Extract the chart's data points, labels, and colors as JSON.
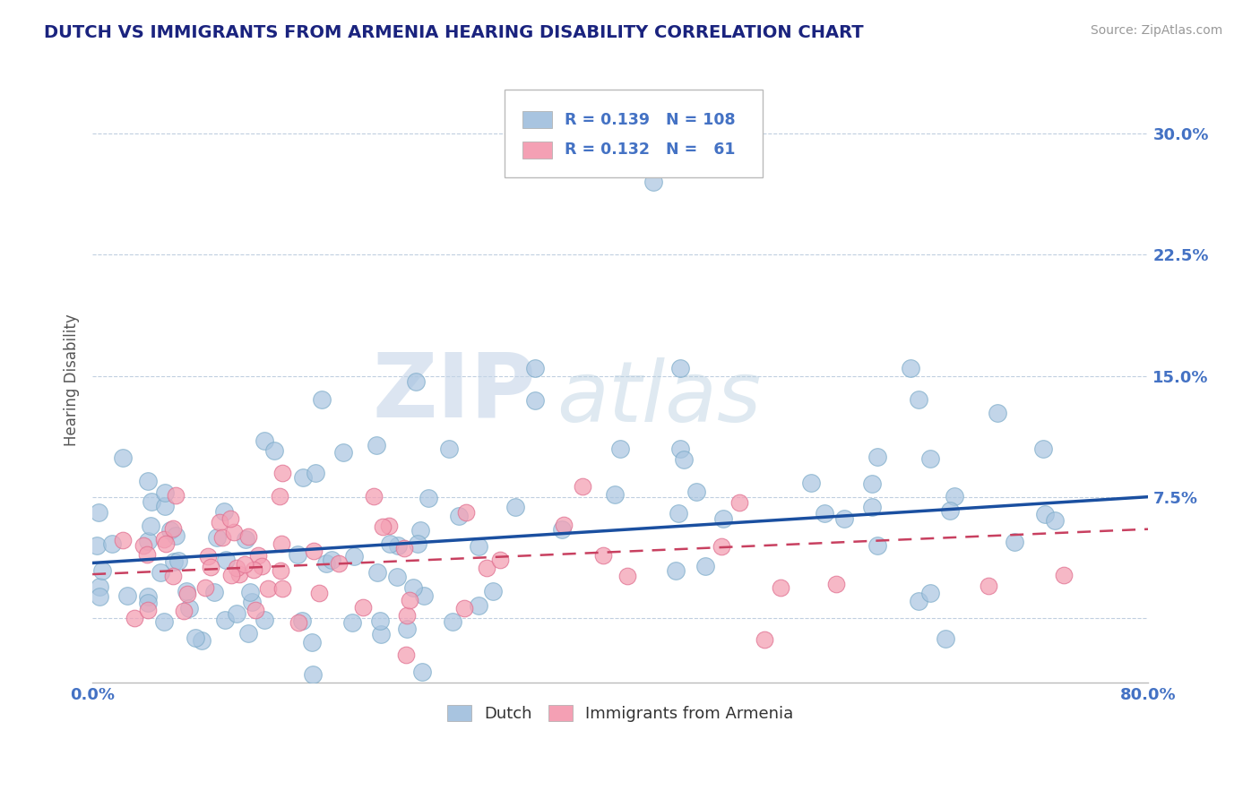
{
  "title": "DUTCH VS IMMIGRANTS FROM ARMENIA HEARING DISABILITY CORRELATION CHART",
  "source": "Source: ZipAtlas.com",
  "ylabel": "Hearing Disability",
  "xlim": [
    0.0,
    0.8
  ],
  "ylim": [
    -0.04,
    0.335
  ],
  "yticks": [
    0.0,
    0.075,
    0.15,
    0.225,
    0.3
  ],
  "ytick_labels": [
    "",
    "7.5%",
    "15.0%",
    "22.5%",
    "30.0%"
  ],
  "dutch_R": 0.139,
  "dutch_N": 108,
  "armenia_R": 0.132,
  "armenia_N": 61,
  "dutch_color": "#a8c4e0",
  "dutch_edge_color": "#7aaac8",
  "armenia_color": "#f4a0b4",
  "armenia_edge_color": "#e07090",
  "dutch_line_color": "#1a4fa0",
  "armenia_line_color": "#c84060",
  "watermark_zip": "ZIP",
  "watermark_atlas": "atlas",
  "background_color": "#ffffff",
  "grid_color": "#c0cfe0",
  "legend_label_dutch": "Dutch",
  "legend_label_armenia": "Immigrants from Armenia",
  "stat_color": "#4472c4",
  "title_color": "#1a237e",
  "axis_label_color": "#4472c4",
  "dutch_trend_start_y": 0.034,
  "dutch_trend_end_y": 0.075,
  "armenia_trend_start_y": 0.027,
  "armenia_trend_end_y": 0.055
}
